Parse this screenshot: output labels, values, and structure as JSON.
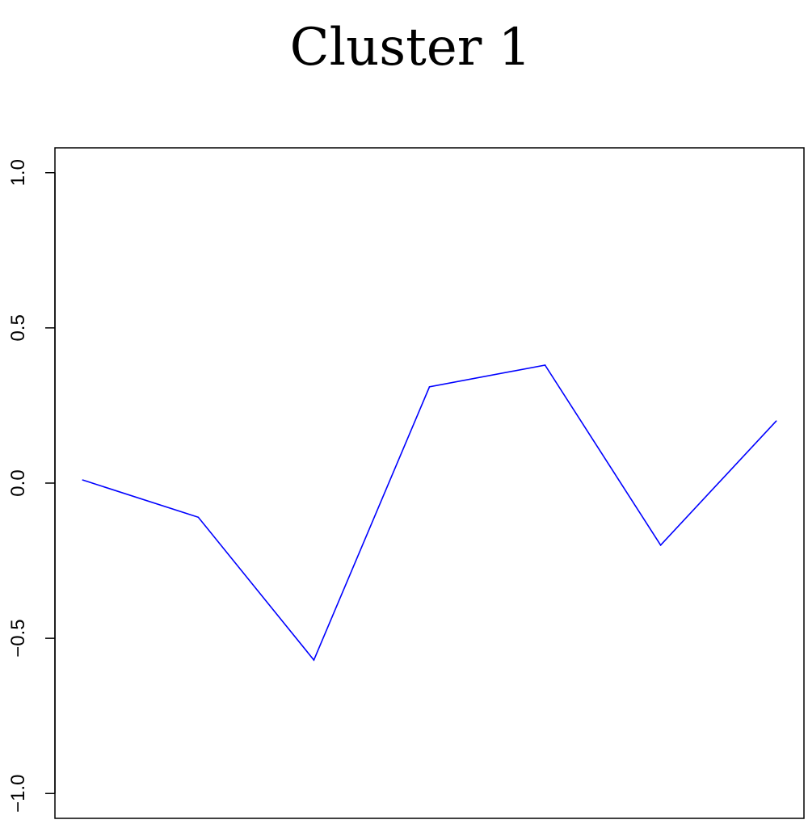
{
  "chart_data": {
    "type": "line",
    "title": "Cluster 1",
    "xlabel": "",
    "ylabel": "",
    "x": [
      1,
      2,
      3,
      4,
      5,
      6,
      7
    ],
    "series": [
      {
        "values": [
          0.01,
          -0.11,
          -0.57,
          0.31,
          0.38,
          -0.2,
          0.2
        ],
        "color": "#0000ff"
      }
    ],
    "xlim": [
      0.76,
      7.24
    ],
    "ylim": [
      -1.08,
      1.08
    ],
    "yticks": [
      -1.0,
      -0.5,
      0.0,
      0.5,
      1.0
    ],
    "ytick_labels": [
      "−1.0",
      "−0.5",
      "0.0",
      "0.5",
      "1.0"
    ],
    "xticks": [],
    "grid": false,
    "legend": "none"
  }
}
